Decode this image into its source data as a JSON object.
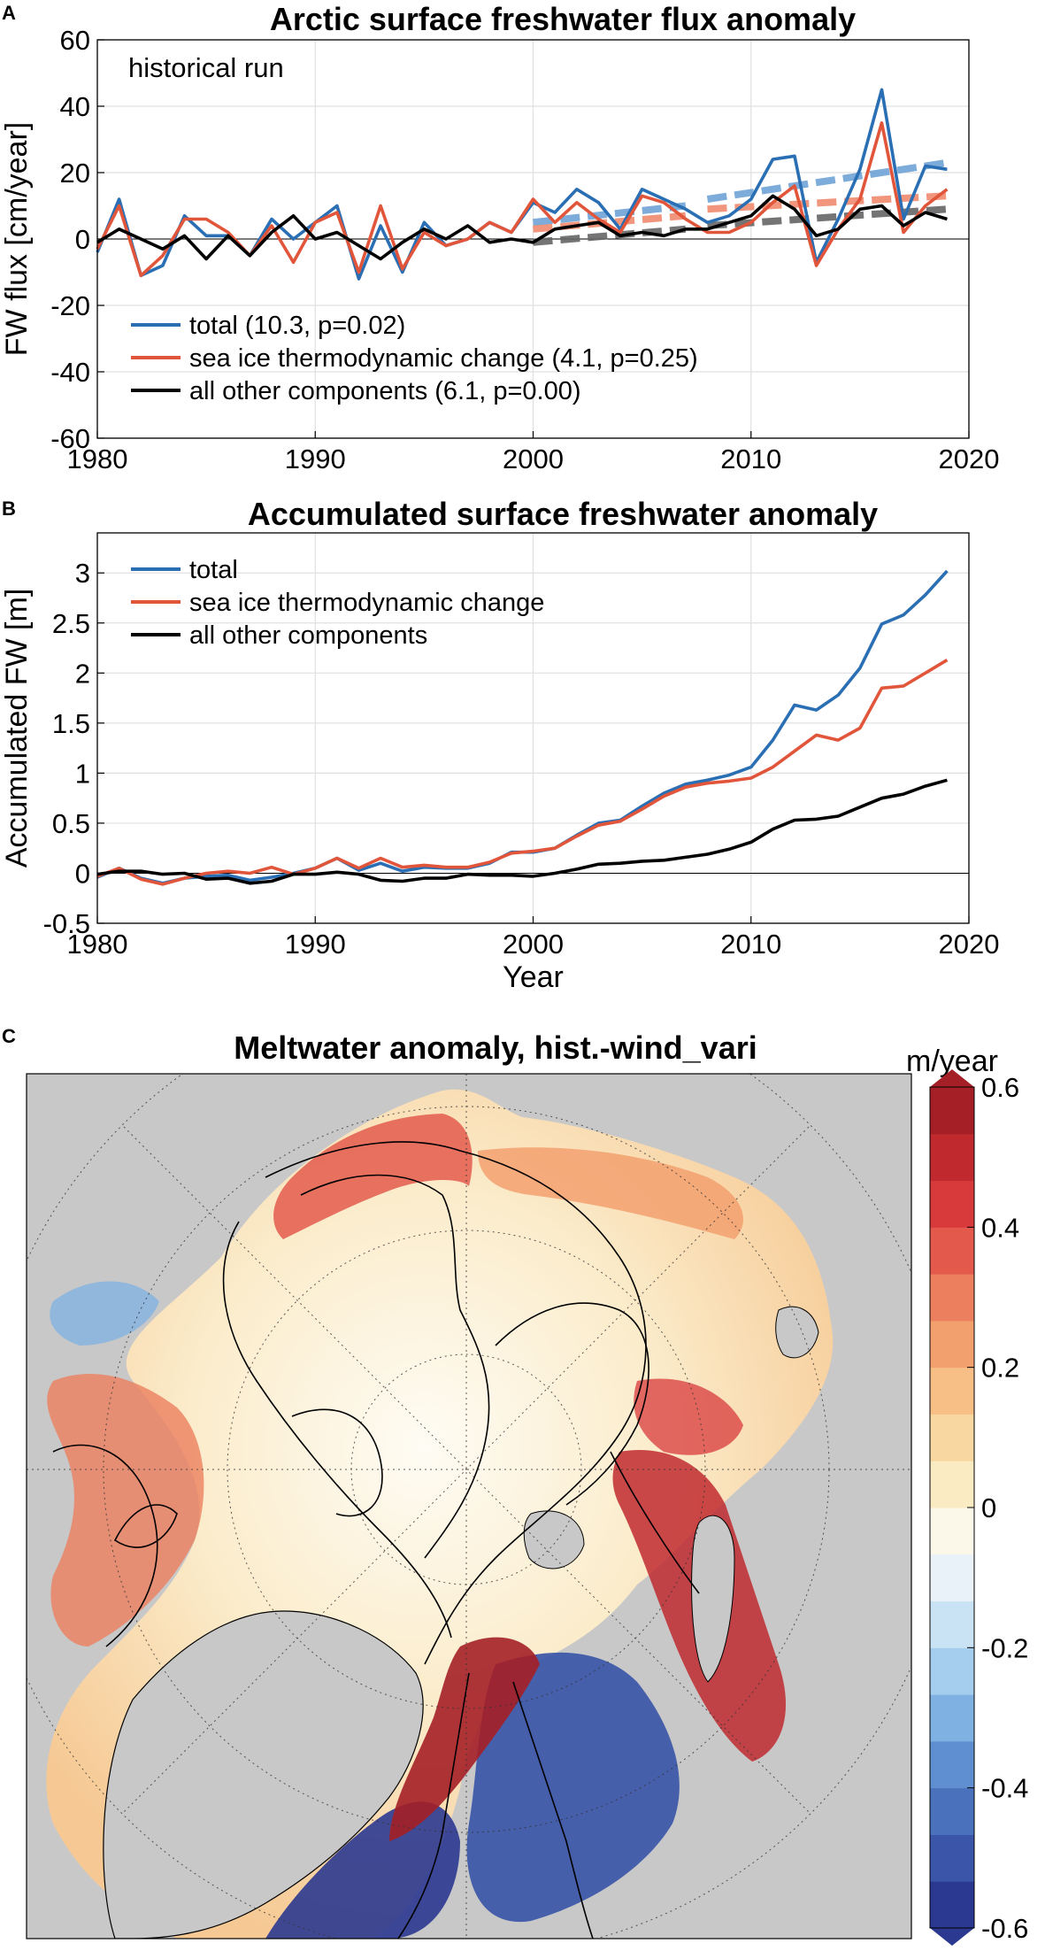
{
  "panels": {
    "a": {
      "letter": "A"
    },
    "b": {
      "letter": "B"
    },
    "c": {
      "letter": "C"
    }
  },
  "chart_data": [
    {
      "type": "line",
      "title": "Arctic surface freshwater flux anomaly",
      "annotation": "historical run",
      "xlabel": "",
      "ylabel": "FW flux [cm/year]",
      "xlim": [
        1980,
        2020
      ],
      "ylim": [
        -60,
        60
      ],
      "xticks": [
        1980,
        1990,
        2000,
        2010,
        2020
      ],
      "yticks": [
        -60,
        -40,
        -20,
        0,
        20,
        40,
        60
      ],
      "grid": true,
      "legend_position": "bottom-left",
      "x": [
        1980,
        1981,
        1982,
        1983,
        1984,
        1985,
        1986,
        1987,
        1988,
        1989,
        1990,
        1991,
        1992,
        1993,
        1994,
        1995,
        1996,
        1997,
        1998,
        1999,
        2000,
        2001,
        2002,
        2003,
        2004,
        2005,
        2006,
        2007,
        2008,
        2009,
        2010,
        2011,
        2012,
        2013,
        2014,
        2015,
        2016,
        2017,
        2018,
        2019
      ],
      "series": [
        {
          "name": "total (10.3, p=0.02)",
          "color": "#2a6fb4",
          "values": [
            -4,
            12,
            -11,
            -8,
            7,
            1,
            1,
            -5,
            6,
            0,
            5,
            10,
            -12,
            4,
            -10,
            5,
            -2,
            0,
            5,
            2,
            11,
            8,
            15,
            11,
            3,
            15,
            12,
            9,
            5,
            7,
            12,
            24,
            25,
            -7,
            6,
            21,
            45,
            6,
            22,
            21
          ]
        },
        {
          "name": "sea ice thermodynamic change (4.1, p=0.25)",
          "color": "#e1553a",
          "values": [
            -3,
            10,
            -11,
            -5,
            6,
            6,
            2,
            -5,
            4,
            -7,
            5,
            8,
            -10,
            10,
            -9,
            2,
            -2,
            0,
            5,
            2,
            12,
            5,
            11,
            6,
            2,
            13,
            11,
            6,
            2,
            2,
            5,
            11,
            16,
            -8,
            3,
            12,
            35,
            2,
            10,
            15
          ]
        },
        {
          "name": "all other components (6.1, p=0.00)",
          "color": "#000000",
          "values": [
            -1,
            3,
            0,
            -3,
            1,
            -6,
            1,
            -5,
            2,
            7,
            0,
            2,
            -2,
            -6,
            -1,
            3,
            0,
            4,
            -1,
            0,
            -1,
            3,
            4,
            5,
            1,
            2,
            1,
            3,
            3,
            5,
            7,
            13,
            9,
            1,
            3,
            9,
            10,
            4,
            8,
            6
          ]
        }
      ],
      "trend_segments": [
        {
          "series": "total",
          "color": "#6fa3d6",
          "segments": [
            [
              2000,
              2007,
              5,
              10
            ],
            [
              2008,
              2019,
              12,
              23
            ]
          ]
        },
        {
          "series": "sea ice thermodynamic change",
          "color": "#f08a6e",
          "segments": [
            [
              2000,
              2007,
              3,
              7
            ],
            [
              2008,
              2019,
              9,
              13
            ]
          ]
        },
        {
          "series": "all other components",
          "color": "#666666",
          "segments": [
            [
              2000,
              2007,
              -1,
              3
            ],
            [
              2008,
              2019,
              4,
              9
            ]
          ]
        }
      ]
    },
    {
      "type": "line",
      "title": "Accumulated surface freshwater anomaly",
      "xlabel": "Year",
      "ylabel": "Accumulated FW [m]",
      "xlim": [
        1980,
        2020
      ],
      "ylim": [
        -0.5,
        3.4
      ],
      "xticks": [
        1980,
        1990,
        2000,
        2010,
        2020
      ],
      "yticks": [
        -0.5,
        0,
        0.5,
        1,
        1.5,
        2,
        2.5,
        3
      ],
      "ytick_labels": [
        "-0.5",
        "0",
        "0.5",
        "1",
        "1.5",
        "2",
        "2.5",
        "3"
      ],
      "grid": true,
      "legend_position": "top-left",
      "x": [
        1980,
        1981,
        1982,
        1983,
        1984,
        1985,
        1986,
        1987,
        1988,
        1989,
        1990,
        1991,
        1992,
        1993,
        1994,
        1995,
        1996,
        1997,
        1998,
        1999,
        2000,
        2001,
        2002,
        2003,
        2004,
        2005,
        2006,
        2007,
        2008,
        2009,
        2010,
        2011,
        2012,
        2013,
        2014,
        2015,
        2016,
        2017,
        2018,
        2019
      ],
      "series": [
        {
          "name": "total",
          "color": "#2a6fb4",
          "values": [
            -0.04,
            0.05,
            -0.05,
            -0.1,
            -0.05,
            -0.03,
            -0.02,
            -0.07,
            -0.04,
            0.0,
            0.05,
            0.15,
            0.03,
            0.1,
            0.02,
            0.06,
            0.05,
            0.05,
            0.1,
            0.21,
            0.21,
            0.25,
            0.38,
            0.5,
            0.53,
            0.67,
            0.8,
            0.89,
            0.93,
            0.98,
            1.06,
            1.33,
            1.68,
            1.63,
            1.78,
            2.05,
            2.49,
            2.58,
            2.78,
            3.02
          ]
        },
        {
          "name": "sea ice thermodynamic change",
          "color": "#e1553a",
          "values": [
            -0.03,
            0.05,
            -0.06,
            -0.11,
            -0.05,
            0.0,
            0.02,
            0.0,
            0.06,
            -0.01,
            0.05,
            0.15,
            0.05,
            0.15,
            0.06,
            0.08,
            0.06,
            0.06,
            0.11,
            0.2,
            0.22,
            0.25,
            0.37,
            0.48,
            0.52,
            0.64,
            0.77,
            0.86,
            0.9,
            0.92,
            0.95,
            1.06,
            1.22,
            1.38,
            1.33,
            1.45,
            1.85,
            1.87,
            2.0,
            2.13
          ]
        },
        {
          "name": "all other components",
          "color": "#000000",
          "values": [
            -0.01,
            0.02,
            0.02,
            -0.01,
            0.0,
            -0.06,
            -0.05,
            -0.1,
            -0.08,
            -0.01,
            -0.01,
            0.01,
            -0.01,
            -0.07,
            -0.08,
            -0.05,
            -0.05,
            -0.01,
            -0.02,
            -0.02,
            -0.03,
            0.0,
            0.04,
            0.09,
            0.1,
            0.12,
            0.13,
            0.16,
            0.19,
            0.24,
            0.31,
            0.44,
            0.53,
            0.54,
            0.57,
            0.66,
            0.75,
            0.79,
            0.87,
            0.93
          ]
        }
      ]
    },
    {
      "type": "heatmap",
      "title": "Meltwater anomaly, hist.-wind_vari",
      "colorbar": {
        "unit": "m/year",
        "range": [
          -0.6,
          0.6
        ],
        "ticks": [
          0.6,
          0.4,
          0.2,
          0,
          -0.2,
          -0.4,
          -0.6
        ],
        "tick_labels": [
          "0.6",
          "0.4",
          "0.2",
          "0",
          "-0.2",
          "-0.4",
          "-0.6"
        ],
        "colors": [
          "#2b3990",
          "#3b56a8",
          "#4a71bc",
          "#5f8fd0",
          "#7fb1e3",
          "#a4cdee",
          "#c9e3f4",
          "#e8f2f8",
          "#fbf7e9",
          "#fbebc3",
          "#f9d7a0",
          "#f7bf86",
          "#f3a06f",
          "#ec7f5e",
          "#e35a4c",
          "#d83a3b",
          "#c02a2f",
          "#a41f26"
        ]
      },
      "land_color": "#c8c8c8",
      "ocean_background_color": "#fbf4dd"
    }
  ]
}
